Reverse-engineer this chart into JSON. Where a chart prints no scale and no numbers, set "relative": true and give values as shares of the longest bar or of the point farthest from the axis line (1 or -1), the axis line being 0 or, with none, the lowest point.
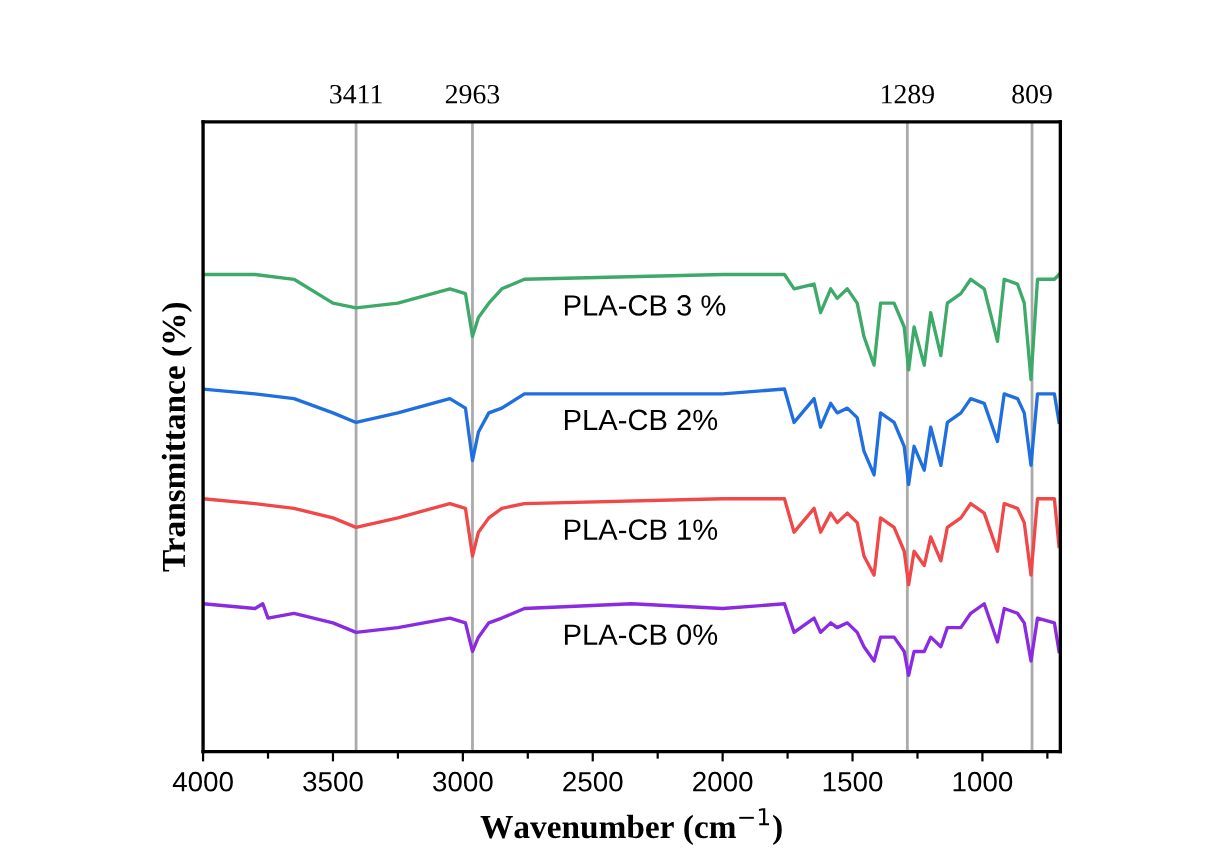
{
  "chart_data": {
    "type": "line",
    "relative": true,
    "xlabel": "Wavenumber (cm$^{−1}$)",
    "ylabel": "Transmittance (%)",
    "xlim": [
      4000,
      700
    ],
    "xticks": [
      4000,
      {
        "value": 3750,
        "label": null
      },
      3500,
      {
        "value": 3250,
        "label": null
      },
      3000,
      {
        "value": 2750,
        "label": null
      },
      2500,
      {
        "value": 2250,
        "label": null
      },
      2000,
      {
        "value": 1750,
        "label": null
      },
      1500,
      {
        "value": 1250,
        "label": null
      },
      1000,
      {
        "value": 750,
        "label": null
      }
    ],
    "tick_labels": "x",
    "grid": false,
    "legend": false,
    "marker": "none",
    "line_style": "solid",
    "ref_lines": [
      {
        "axis": "x",
        "value": 3411,
        "label": "3411",
        "color": "#aaaaaa"
      },
      {
        "axis": "x",
        "value": 2963,
        "label": "2963",
        "color": "#aaaaaa"
      },
      {
        "axis": "x",
        "value": 1289,
        "label": "1289",
        "color": "#aaaaaa"
      },
      {
        "axis": "x",
        "value": 809,
        "label": "809",
        "color": "#aaaaaa"
      }
    ],
    "series": [
      {
        "name": "PLA-CB 3 %",
        "color": "#3daa6a",
        "x": [
          4000,
          3800,
          3650,
          3500,
          3411,
          3250,
          3050,
          2990,
          2963,
          2940,
          2900,
          2850,
          2763,
          2000,
          1762,
          1725,
          1648,
          1623,
          1584,
          1559,
          1520,
          1482,
          1456,
          1417,
          1392,
          1340,
          1301,
          1284,
          1263,
          1224,
          1199,
          1160,
          1135,
          1083,
          1045,
          993,
          942,
          916,
          865,
          839,
          813,
          788,
          723,
          705
        ],
        "values": [
          1.0,
          1.0,
          0.99,
          0.94,
          0.93,
          0.94,
          0.97,
          0.96,
          0.87,
          0.91,
          0.94,
          0.97,
          0.99,
          1.0,
          1.0,
          0.97,
          0.98,
          0.92,
          0.97,
          0.95,
          0.97,
          0.94,
          0.87,
          0.81,
          0.94,
          0.94,
          0.89,
          0.8,
          0.89,
          0.81,
          0.92,
          0.83,
          0.94,
          0.96,
          0.99,
          0.97,
          0.86,
          0.99,
          0.98,
          0.94,
          0.78,
          0.99,
          0.99,
          1.0
        ]
      },
      {
        "name": "PLA-CB 2%",
        "color": "#1f6fe0",
        "x": [
          4000,
          3800,
          3650,
          3500,
          3411,
          3250,
          3050,
          2990,
          2963,
          2940,
          2900,
          2850,
          2763,
          2000,
          1762,
          1725,
          1648,
          1623,
          1584,
          1559,
          1520,
          1482,
          1456,
          1417,
          1392,
          1340,
          1301,
          1284,
          1263,
          1224,
          1199,
          1160,
          1135,
          1083,
          1045,
          993,
          942,
          916,
          865,
          839,
          813,
          788,
          723,
          705
        ],
        "values": [
          0.76,
          0.75,
          0.74,
          0.71,
          0.69,
          0.71,
          0.74,
          0.72,
          0.61,
          0.67,
          0.71,
          0.72,
          0.75,
          0.75,
          0.76,
          0.69,
          0.74,
          0.68,
          0.73,
          0.71,
          0.72,
          0.7,
          0.63,
          0.58,
          0.71,
          0.69,
          0.64,
          0.56,
          0.64,
          0.59,
          0.68,
          0.6,
          0.69,
          0.71,
          0.74,
          0.73,
          0.65,
          0.75,
          0.74,
          0.71,
          0.6,
          0.75,
          0.75,
          0.69
        ]
      },
      {
        "name": "PLA-CB 1%",
        "color": "#f04848",
        "x": [
          4000,
          3800,
          3650,
          3500,
          3411,
          3250,
          3050,
          2990,
          2963,
          2940,
          2900,
          2850,
          2763,
          2000,
          1762,
          1725,
          1648,
          1623,
          1584,
          1559,
          1520,
          1482,
          1456,
          1417,
          1392,
          1340,
          1301,
          1284,
          1263,
          1224,
          1199,
          1160,
          1135,
          1083,
          1045,
          993,
          942,
          916,
          865,
          839,
          813,
          788,
          723,
          705
        ],
        "values": [
          0.53,
          0.52,
          0.51,
          0.49,
          0.47,
          0.49,
          0.52,
          0.51,
          0.41,
          0.46,
          0.49,
          0.51,
          0.52,
          0.53,
          0.53,
          0.46,
          0.51,
          0.46,
          0.5,
          0.48,
          0.5,
          0.48,
          0.41,
          0.37,
          0.49,
          0.47,
          0.42,
          0.35,
          0.42,
          0.39,
          0.45,
          0.4,
          0.47,
          0.49,
          0.52,
          0.5,
          0.42,
          0.52,
          0.51,
          0.48,
          0.37,
          0.53,
          0.53,
          0.43
        ]
      },
      {
        "name": "PLA-CB 0%",
        "color": "#8a2be2",
        "x": [
          4000,
          3800,
          3770,
          3750,
          3650,
          3500,
          3411,
          3250,
          3050,
          2990,
          2963,
          2940,
          2900,
          2850,
          2763,
          2350,
          2000,
          1762,
          1725,
          1648,
          1623,
          1584,
          1559,
          1520,
          1482,
          1456,
          1417,
          1392,
          1340,
          1301,
          1284,
          1263,
          1224,
          1199,
          1160,
          1135,
          1083,
          1045,
          993,
          942,
          916,
          865,
          839,
          813,
          788,
          723,
          705
        ],
        "values": [
          0.31,
          0.3,
          0.31,
          0.28,
          0.29,
          0.27,
          0.25,
          0.26,
          0.28,
          0.27,
          0.21,
          0.24,
          0.27,
          0.28,
          0.3,
          0.31,
          0.3,
          0.31,
          0.25,
          0.28,
          0.25,
          0.27,
          0.26,
          0.27,
          0.25,
          0.22,
          0.19,
          0.24,
          0.24,
          0.21,
          0.16,
          0.21,
          0.21,
          0.24,
          0.22,
          0.26,
          0.26,
          0.29,
          0.31,
          0.23,
          0.3,
          0.29,
          0.27,
          0.19,
          0.28,
          0.27,
          0.21
        ]
      }
    ]
  }
}
